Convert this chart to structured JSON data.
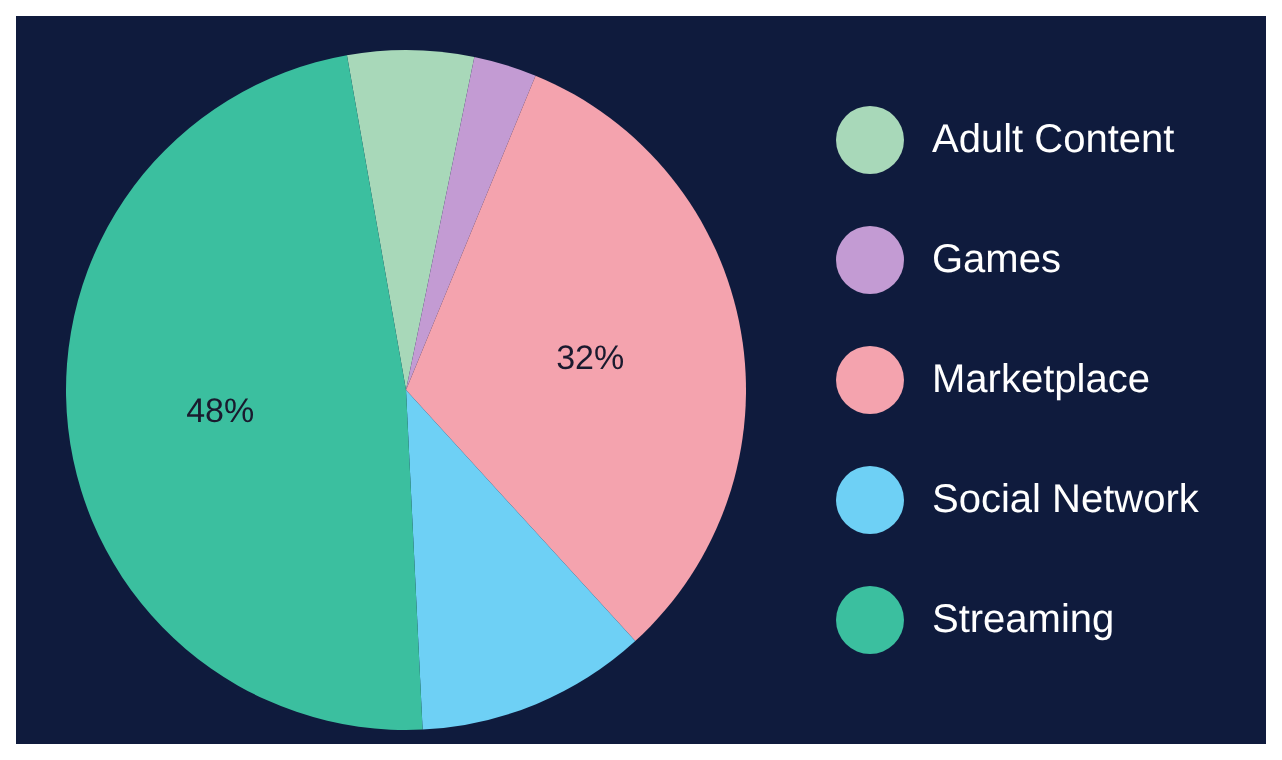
{
  "chart_data": {
    "type": "pie",
    "categories": [
      "Adult Content",
      "Games",
      "Marketplace",
      "Social Network",
      "Streaming"
    ],
    "values": [
      6,
      3,
      32,
      11,
      48
    ],
    "colors": [
      "#a8d8b9",
      "#c39bd3",
      "#f4a3ae",
      "#6ed0f5",
      "#3bbf9f"
    ],
    "value_labels": [
      null,
      null,
      "32%",
      null,
      "48%"
    ],
    "legend": "right"
  }
}
